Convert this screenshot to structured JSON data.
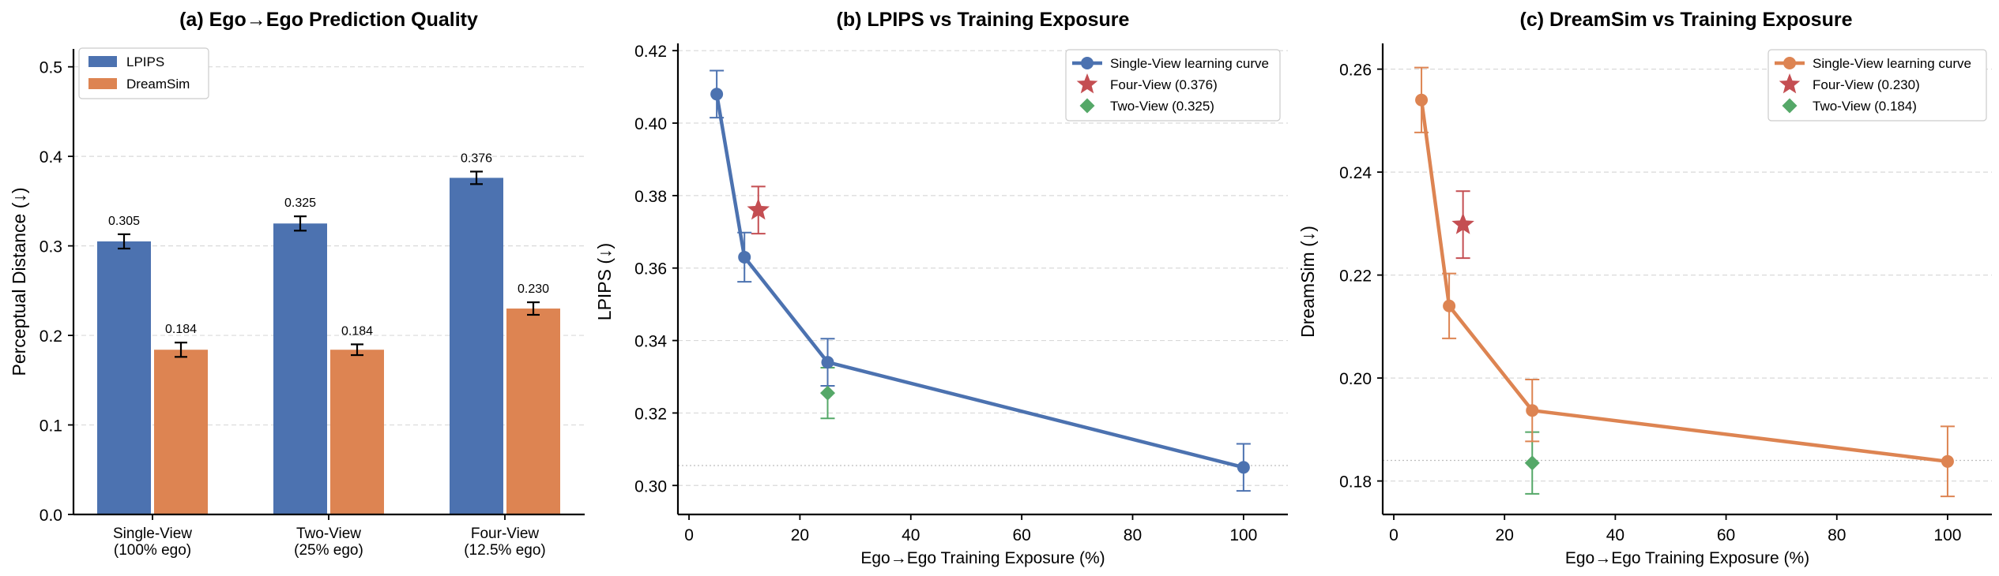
{
  "chart_data": [
    {
      "type": "bar",
      "title": "(a) Ego→Ego Prediction Quality",
      "xlabel": "",
      "ylabel": "Perceptual Distance (↓)",
      "ylim": [
        0,
        0.52
      ],
      "yticks": [
        "0.0",
        "0.1",
        "0.2",
        "0.3",
        "0.4",
        "0.5"
      ],
      "categories": [
        [
          "Single-View",
          "(100% ego)"
        ],
        [
          "Two-View",
          "(25% ego)"
        ],
        [
          "Four-View",
          "(12.5% ego)"
        ]
      ],
      "series": [
        {
          "name": "LPIPS",
          "color": "#4C72B0",
          "values": [
            0.305,
            0.325,
            0.376
          ],
          "errors": [
            0.008,
            0.008,
            0.007
          ],
          "labels": [
            "0.305",
            "0.325",
            "0.376"
          ]
        },
        {
          "name": "DreamSim",
          "color": "#DD8452",
          "values": [
            0.184,
            0.184,
            0.23
          ],
          "errors": [
            0.008,
            0.006,
            0.007
          ],
          "labels": [
            "0.184",
            "0.184",
            "0.230"
          ]
        }
      ],
      "legend": "top-left",
      "grid": "y-dashed"
    },
    {
      "type": "line",
      "title": "(b) LPIPS vs Training Exposure",
      "xlabel": "Ego→Ego Training Exposure (%)",
      "ylabel": "LPIPS (↓)",
      "xlim": [
        -2,
        108
      ],
      "ylim": [
        0.292,
        0.422
      ],
      "xticks": [
        "0",
        "20",
        "40",
        "60",
        "80",
        "100"
      ],
      "yticks": [
        "0.30",
        "0.32",
        "0.34",
        "0.36",
        "0.38",
        "0.40",
        "0.42"
      ],
      "color": "#4C72B0",
      "curve": {
        "name": "Single-View learning curve",
        "x": [
          5,
          10,
          25,
          100
        ],
        "y": [
          0.408,
          0.363,
          0.334,
          0.305
        ],
        "err": [
          0.0065,
          0.0068,
          0.0065,
          0.0065
        ]
      },
      "points": [
        {
          "name": "Four-View (0.376)",
          "marker": "star",
          "color": "#C44E52",
          "x": 12.5,
          "y": 0.376,
          "err": 0.0065
        },
        {
          "name": "Two-View (0.325)",
          "marker": "diamond",
          "color": "#55A868",
          "x": 25,
          "y": 0.3255,
          "err": 0.007
        }
      ],
      "hlines": [
        0.3055
      ],
      "legend": "top-right",
      "grid": "y-dashed"
    },
    {
      "type": "line",
      "title": "(c) DreamSim vs Training Exposure",
      "xlabel": "Ego→Ego Training Exposure (%)",
      "ylabel": "DreamSim (↓)",
      "xlim": [
        -2,
        108
      ],
      "ylim": [
        0.1735,
        0.265
      ],
      "xticks": [
        "0",
        "20",
        "40",
        "60",
        "80",
        "100"
      ],
      "yticks": [
        "0.18",
        "0.20",
        "0.22",
        "0.24",
        "0.26"
      ],
      "color": "#DD8452",
      "curve": {
        "name": "Single-View learning curve",
        "x": [
          5,
          10,
          25,
          100
        ],
        "y": [
          0.254,
          0.214,
          0.1937,
          0.1838
        ],
        "err": [
          0.0063,
          0.0063,
          0.006,
          0.0068
        ]
      },
      "points": [
        {
          "name": "Four-View (0.230)",
          "marker": "star",
          "color": "#C44E52",
          "x": 12.5,
          "y": 0.2298,
          "err": 0.0065
        },
        {
          "name": "Two-View (0.184)",
          "marker": "diamond",
          "color": "#55A868",
          "x": 25,
          "y": 0.1835,
          "err": 0.006
        }
      ],
      "hlines": [
        0.184
      ],
      "legend": "top-right",
      "grid": "y-dashed"
    }
  ]
}
